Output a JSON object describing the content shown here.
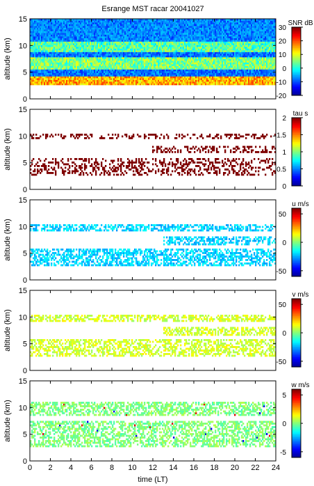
{
  "chart_data": {
    "type": "heatmap",
    "title": "Esrange MST racar 20041027",
    "xlabel": "time (LT)",
    "xlim": [
      0,
      24
    ],
    "x_ticks": [
      "0",
      "2",
      "4",
      "6",
      "8",
      "10",
      "12",
      "14",
      "16",
      "18",
      "20",
      "22",
      "24"
    ],
    "panels": [
      {
        "name": "snr",
        "ylabel": "altitude (km)",
        "ylim": [
          0,
          15
        ],
        "y_ticks": [
          "0",
          "5",
          "10",
          "15"
        ],
        "data_altitude_range": [
          2.5,
          15
        ],
        "colorbar": {
          "label": "SNR dB",
          "range": [
            -20,
            30
          ],
          "ticks": [
            "30",
            "20",
            "10",
            "0",
            "-10",
            "-20"
          ],
          "colors": [
            "#00008f",
            "#0000ff",
            "#007fff",
            "#00ffff",
            "#7fff7f",
            "#ffff00",
            "#ff7f00",
            "#ff0000",
            "#7f0000"
          ]
        },
        "structures": [
          {
            "feature": "strong echo near tropopause",
            "time": [
              0,
              24
            ],
            "altitude_km": [
              2.5,
              4
            ],
            "snr_db": 15
          },
          {
            "feature": "enhanced layer",
            "time": [
              0,
              24
            ],
            "altitude_km": [
              6,
              7.5
            ],
            "snr_db": 5
          },
          {
            "feature": "enhanced layer",
            "time": [
              0,
              24
            ],
            "altitude_km": [
              9,
              10.5
            ],
            "snr_db": 3
          },
          {
            "feature": "background",
            "time": [
              0,
              24
            ],
            "altitude_km": [
              11,
              15
            ],
            "snr_db": -10
          }
        ]
      },
      {
        "name": "tau",
        "ylabel": "altitude (km)",
        "ylim": [
          0,
          15
        ],
        "y_ticks": [
          "0",
          "5",
          "10",
          "15"
        ],
        "colorbar": {
          "label": "tau s",
          "range": [
            0,
            2
          ],
          "ticks": [
            "2",
            "1.5",
            "1",
            "0.5",
            "0"
          ],
          "colors": [
            "#00008f",
            "#0000ff",
            "#007fff",
            "#00ffff",
            "#7fff7f",
            "#ffff00",
            "#ff7f00",
            "#ff0000",
            "#7f0000"
          ]
        },
        "dominant_value": 2,
        "structures": [
          {
            "time": [
              0,
              24
            ],
            "altitude_km": [
              2.5,
              6
            ]
          },
          {
            "time": [
              12,
              24
            ],
            "altitude_km": [
              7,
              8
            ]
          },
          {
            "time": [
              0,
              24
            ],
            "altitude_km": [
              9.5,
              10.5
            ]
          }
        ]
      },
      {
        "name": "u",
        "ylabel": "altitude (km)",
        "ylim": [
          0,
          15
        ],
        "y_ticks": [
          "0",
          "5",
          "10",
          "15"
        ],
        "colorbar": {
          "label": "u m/s",
          "range": [
            -60,
            60
          ],
          "ticks": [
            "50",
            "0",
            "-50"
          ],
          "colors": [
            "#00008f",
            "#0000ff",
            "#007fff",
            "#00ffff",
            "#7fff7f",
            "#ffff00",
            "#ff7f00",
            "#ff0000",
            "#7f0000"
          ]
        },
        "dominant_value": -20,
        "structures": [
          {
            "time": [
              0,
              24
            ],
            "altitude_km": [
              2.5,
              6
            ]
          },
          {
            "time": [
              13,
              24
            ],
            "altitude_km": [
              6.5,
              8
            ]
          },
          {
            "time": [
              0,
              24
            ],
            "altitude_km": [
              9,
              10.5
            ]
          }
        ]
      },
      {
        "name": "v",
        "ylabel": "altitude (km)",
        "ylim": [
          0,
          15
        ],
        "y_ticks": [
          "0",
          "5",
          "10",
          "15"
        ],
        "colorbar": {
          "label": "v m/s",
          "range": [
            -60,
            60
          ],
          "ticks": [
            "50",
            "0",
            "-50"
          ],
          "colors": [
            "#00008f",
            "#0000ff",
            "#007fff",
            "#00ffff",
            "#7fff7f",
            "#ffff00",
            "#ff7f00",
            "#ff0000",
            "#7f0000"
          ]
        },
        "dominant_value": 10,
        "structures": [
          {
            "time": [
              0,
              24
            ],
            "altitude_km": [
              2.5,
              6
            ]
          },
          {
            "time": [
              13,
              24
            ],
            "altitude_km": [
              6.5,
              8
            ]
          },
          {
            "time": [
              0,
              24
            ],
            "altitude_km": [
              9,
              10.5
            ]
          }
        ]
      },
      {
        "name": "w",
        "ylabel": "altitude (km)",
        "ylim": [
          0,
          15
        ],
        "y_ticks": [
          "0",
          "5",
          "10",
          "15"
        ],
        "colorbar": {
          "label": "w m/s",
          "range": [
            -6,
            6
          ],
          "ticks": [
            "5",
            "0",
            "-5"
          ],
          "colors": [
            "#00008f",
            "#0000ff",
            "#007fff",
            "#00ffff",
            "#7fff7f",
            "#ffff00",
            "#ff7f00",
            "#ff0000",
            "#7f0000"
          ]
        },
        "dominant_value": 0,
        "structures": [
          {
            "time": [
              0,
              24
            ],
            "altitude_km": [
              2.5,
              7.5
            ]
          },
          {
            "time": [
              0,
              24
            ],
            "altitude_km": [
              8.5,
              11
            ]
          }
        ]
      }
    ]
  }
}
